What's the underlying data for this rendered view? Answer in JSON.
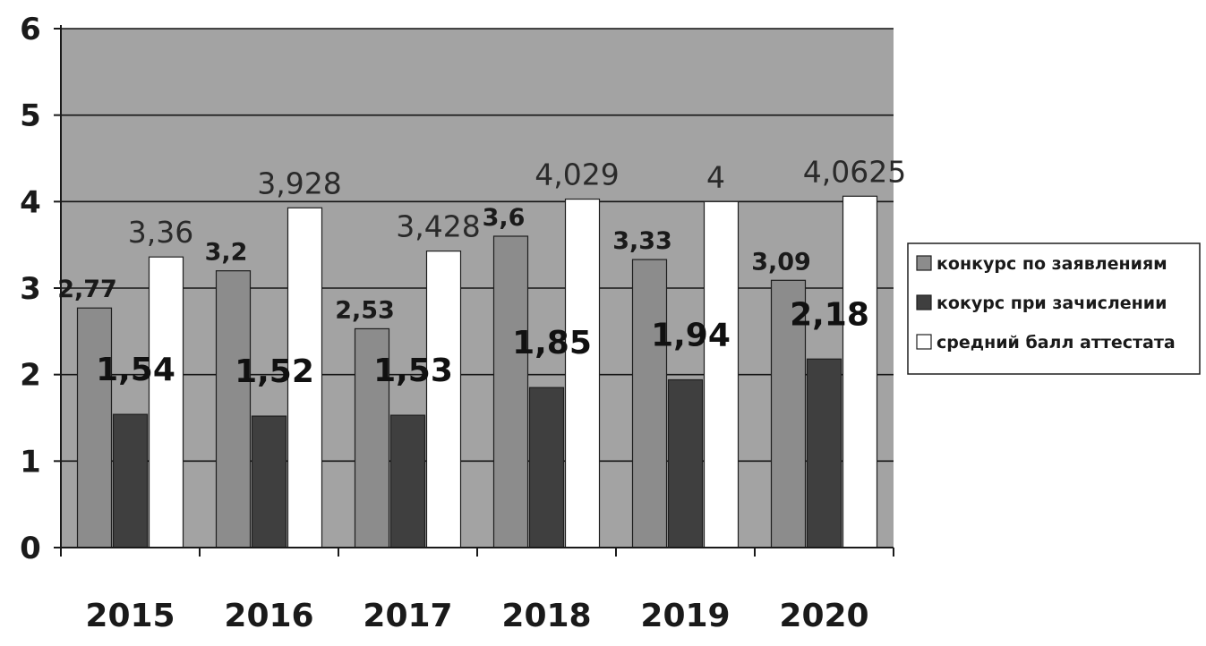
{
  "chart_data": {
    "type": "bar",
    "categories": [
      "2015",
      "2016",
      "2017",
      "2018",
      "2019",
      "2020"
    ],
    "series": [
      {
        "name": "конкурс по заявлениям",
        "values": [
          2.77,
          3.2,
          2.53,
          3.6,
          3.33,
          3.09
        ],
        "labels": [
          "2,77",
          "3,2",
          "2,53",
          "3,6",
          "3,33",
          "3,09"
        ],
        "color": "#8c8c8c"
      },
      {
        "name": "кокурс при зачислении",
        "values": [
          1.54,
          1.52,
          1.53,
          1.85,
          1.94,
          2.18
        ],
        "labels": [
          "1,54",
          "1,52",
          "1,53",
          "1,85",
          "1,94",
          "2,18"
        ],
        "color": "#3f3f3f"
      },
      {
        "name": "средний балл аттестата",
        "values": [
          3.36,
          3.928,
          3.428,
          4.029,
          4,
          4.0625
        ],
        "labels": [
          "3,36",
          "3,928",
          "3,428",
          "4,029",
          "4",
          "4,0625"
        ],
        "color": "#ffffff"
      }
    ],
    "yticks": [
      "0",
      "1",
      "2",
      "3",
      "4",
      "5",
      "6"
    ],
    "ylim": [
      0,
      6
    ],
    "grid": true,
    "legend_position": "right",
    "plot_background": "#a3a3a3",
    "title": "",
    "xlabel": "",
    "ylabel": ""
  }
}
